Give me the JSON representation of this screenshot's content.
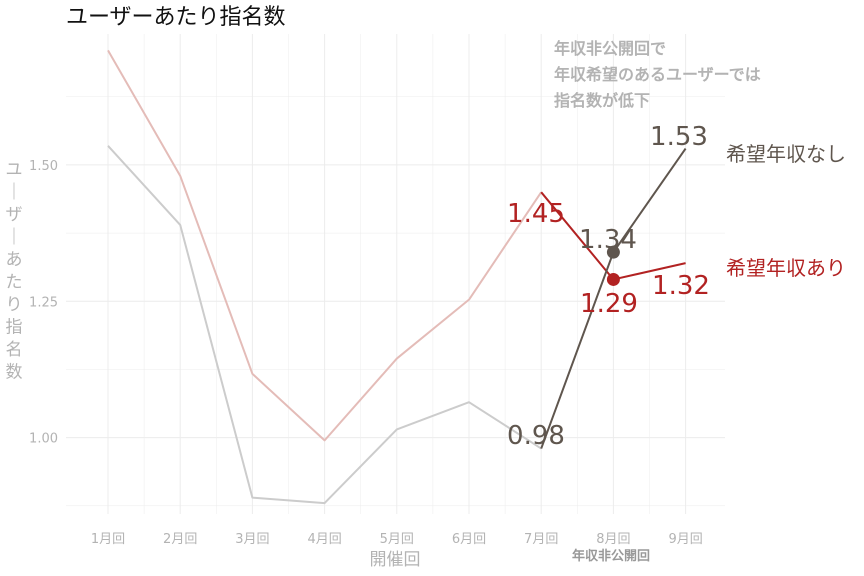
{
  "colors": {
    "with_salary": "#b22222",
    "with_salary_light": "#e4bcb8",
    "without_salary": "#5f564e",
    "without_salary_light": "#cccccc",
    "grid": "#ececec",
    "muted_text": "#b3b3b3"
  },
  "chart_data": {
    "type": "line",
    "title": "ユーザーあたり指名数",
    "xlabel": "開催回",
    "ylabel": "ユーザーあたり指名数",
    "categories": [
      "1月回",
      "2月回",
      "3月回",
      "4月回",
      "5月回",
      "6月回",
      "7月回",
      "8月回",
      "9月回"
    ],
    "ylim": [
      0.86,
      1.74
    ],
    "yticks": [
      1.0,
      1.25,
      1.5
    ],
    "ytick_labels": [
      "1.00",
      "1.25",
      "1.50"
    ],
    "grid": true,
    "legend": "direct-labels",
    "series": [
      {
        "name": "希望年収あり",
        "values": [
          1.71,
          1.48,
          1.117,
          0.995,
          1.145,
          1.253,
          1.45,
          1.29,
          1.32
        ],
        "highlight_from_index": 6,
        "value_labels": [
          "1.45",
          "1.29",
          "1.32"
        ]
      },
      {
        "name": "希望年収なし",
        "values": [
          1.535,
          1.39,
          0.89,
          0.88,
          1.015,
          1.065,
          0.98,
          1.34,
          1.53
        ],
        "highlight_from_index": 6,
        "value_labels": [
          "0.98",
          "1.34",
          "1.53"
        ]
      }
    ],
    "annotations": {
      "note_lines": [
        "年収非公開回で",
        "年収希望のあるユーザーでは",
        "指名数が低下"
      ],
      "bracket_label": "年収非公開回"
    }
  }
}
